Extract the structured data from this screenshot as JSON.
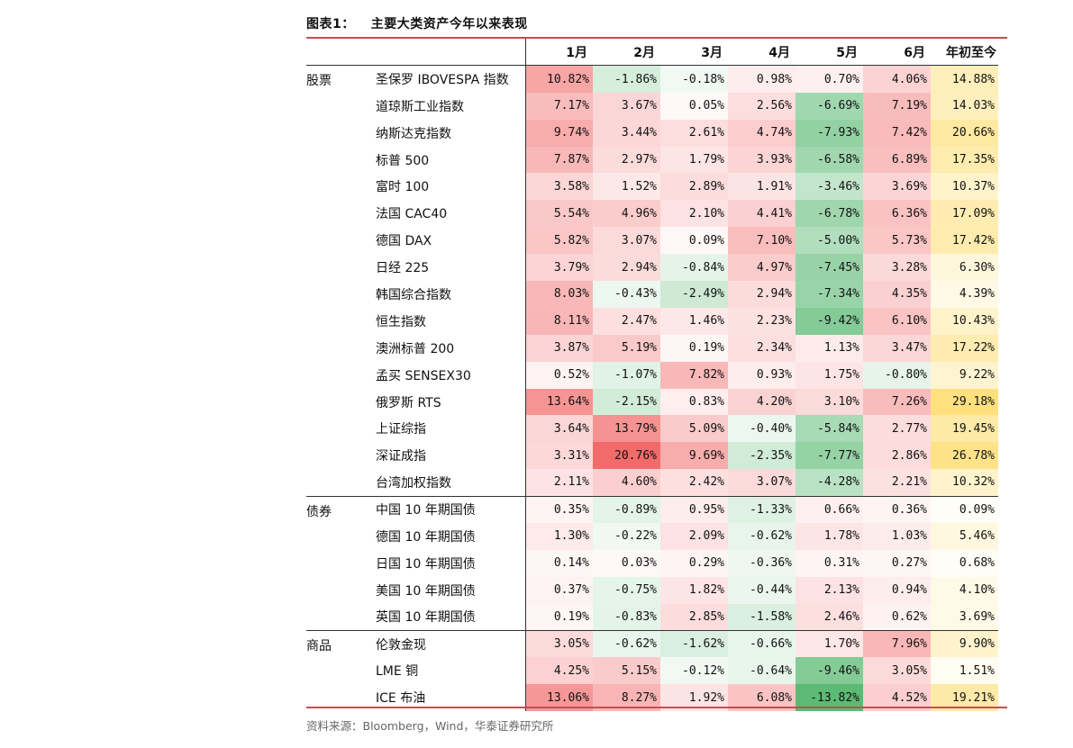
{
  "title": {
    "num": "图表1：",
    "text": "主要大类资产今年以来表现"
  },
  "columns": [
    "1月",
    "2月",
    "3月",
    "4月",
    "5月",
    "6月",
    "年初至今"
  ],
  "groups": [
    {
      "name": "股票",
      "rows": [
        {
          "label": "圣保罗 IBOVESPA 指数",
          "values": [
            "10.82%",
            "-1.86%",
            "-0.18%",
            "0.98%",
            "0.70%",
            "4.06%",
            "14.88%"
          ]
        },
        {
          "label": "道琼斯工业指数",
          "values": [
            "7.17%",
            "3.67%",
            "0.05%",
            "2.56%",
            "-6.69%",
            "7.19%",
            "14.03%"
          ]
        },
        {
          "label": "纳斯达克指数",
          "values": [
            "9.74%",
            "3.44%",
            "2.61%",
            "4.74%",
            "-7.93%",
            "7.42%",
            "20.66%"
          ]
        },
        {
          "label": "标普 500",
          "values": [
            "7.87%",
            "2.97%",
            "1.79%",
            "3.93%",
            "-6.58%",
            "6.89%",
            "17.35%"
          ]
        },
        {
          "label": "富时 100",
          "values": [
            "3.58%",
            "1.52%",
            "2.89%",
            "1.91%",
            "-3.46%",
            "3.69%",
            "10.37%"
          ]
        },
        {
          "label": "法国 CAC40",
          "values": [
            "5.54%",
            "4.96%",
            "2.10%",
            "4.41%",
            "-6.78%",
            "6.36%",
            "17.09%"
          ]
        },
        {
          "label": "德国 DAX",
          "values": [
            "5.82%",
            "3.07%",
            "0.09%",
            "7.10%",
            "-5.00%",
            "5.73%",
            "17.42%"
          ]
        },
        {
          "label": "日经 225",
          "values": [
            "3.79%",
            "2.94%",
            "-0.84%",
            "4.97%",
            "-7.45%",
            "3.28%",
            "6.30%"
          ]
        },
        {
          "label": "韩国综合指数",
          "values": [
            "8.03%",
            "-0.43%",
            "-2.49%",
            "2.94%",
            "-7.34%",
            "4.35%",
            "4.39%"
          ]
        },
        {
          "label": "恒生指数",
          "values": [
            "8.11%",
            "2.47%",
            "1.46%",
            "2.23%",
            "-9.42%",
            "6.10%",
            "10.43%"
          ]
        },
        {
          "label": "澳洲标普 200",
          "values": [
            "3.87%",
            "5.19%",
            "0.19%",
            "2.34%",
            "1.13%",
            "3.47%",
            "17.22%"
          ]
        },
        {
          "label": "孟买 SENSEX30",
          "values": [
            "0.52%",
            "-1.07%",
            "7.82%",
            "0.93%",
            "1.75%",
            "-0.80%",
            "9.22%"
          ]
        },
        {
          "label": "俄罗斯 RTS",
          "values": [
            "13.64%",
            "-2.15%",
            "0.83%",
            "4.20%",
            "3.10%",
            "7.26%",
            "29.18%"
          ]
        },
        {
          "label": "上证综指",
          "values": [
            "3.64%",
            "13.79%",
            "5.09%",
            "-0.40%",
            "-5.84%",
            "2.77%",
            "19.45%"
          ]
        },
        {
          "label": "深证成指",
          "values": [
            "3.31%",
            "20.76%",
            "9.69%",
            "-2.35%",
            "-7.77%",
            "2.86%",
            "26.78%"
          ]
        },
        {
          "label": "台湾加权指数",
          "values": [
            "2.11%",
            "4.60%",
            "2.42%",
            "3.07%",
            "-4.28%",
            "2.21%",
            "10.32%"
          ]
        }
      ]
    },
    {
      "name": "债券",
      "rows": [
        {
          "label": "中国 10 年期国债",
          "values": [
            "0.35%",
            "-0.89%",
            "0.95%",
            "-1.33%",
            "0.66%",
            "0.36%",
            "0.09%"
          ]
        },
        {
          "label": "德国 10 年期国债",
          "values": [
            "1.30%",
            "-0.22%",
            "2.09%",
            "-0.62%",
            "1.78%",
            "1.03%",
            "5.46%"
          ]
        },
        {
          "label": "日国 10 年期国债",
          "values": [
            "0.14%",
            "0.03%",
            "0.29%",
            "-0.36%",
            "0.31%",
            "0.27%",
            "0.68%"
          ]
        },
        {
          "label": "美国 10 年期国债",
          "values": [
            "0.37%",
            "-0.75%",
            "1.82%",
            "-0.44%",
            "2.13%",
            "0.94%",
            "4.10%"
          ]
        },
        {
          "label": "英国 10 年期国债",
          "values": [
            "0.19%",
            "-0.83%",
            "2.85%",
            "-1.58%",
            "2.46%",
            "0.62%",
            "3.69%"
          ]
        }
      ]
    },
    {
      "name": "商品",
      "rows": [
        {
          "label": "伦敦金现",
          "values": [
            "3.05%",
            "-0.62%",
            "-1.62%",
            "-0.66%",
            "1.70%",
            "7.96%",
            "9.90%"
          ]
        },
        {
          "label": "LME 铜",
          "values": [
            "4.25%",
            "5.15%",
            "-0.12%",
            "-0.64%",
            "-9.46%",
            "3.05%",
            "1.51%"
          ]
        },
        {
          "label": "ICE 布油",
          "values": [
            "13.06%",
            "8.27%",
            "1.92%",
            "6.08%",
            "-13.82%",
            "4.52%",
            "19.21%"
          ]
        }
      ]
    }
  ],
  "source": "资料来源：Bloomberg，Wind，华泰证券研究所",
  "colors": {
    "positive_max": "#f26b6b",
    "negative_max": "#5cba74",
    "ytd_high": "#fee07e",
    "accent_line": "#c0504d"
  }
}
